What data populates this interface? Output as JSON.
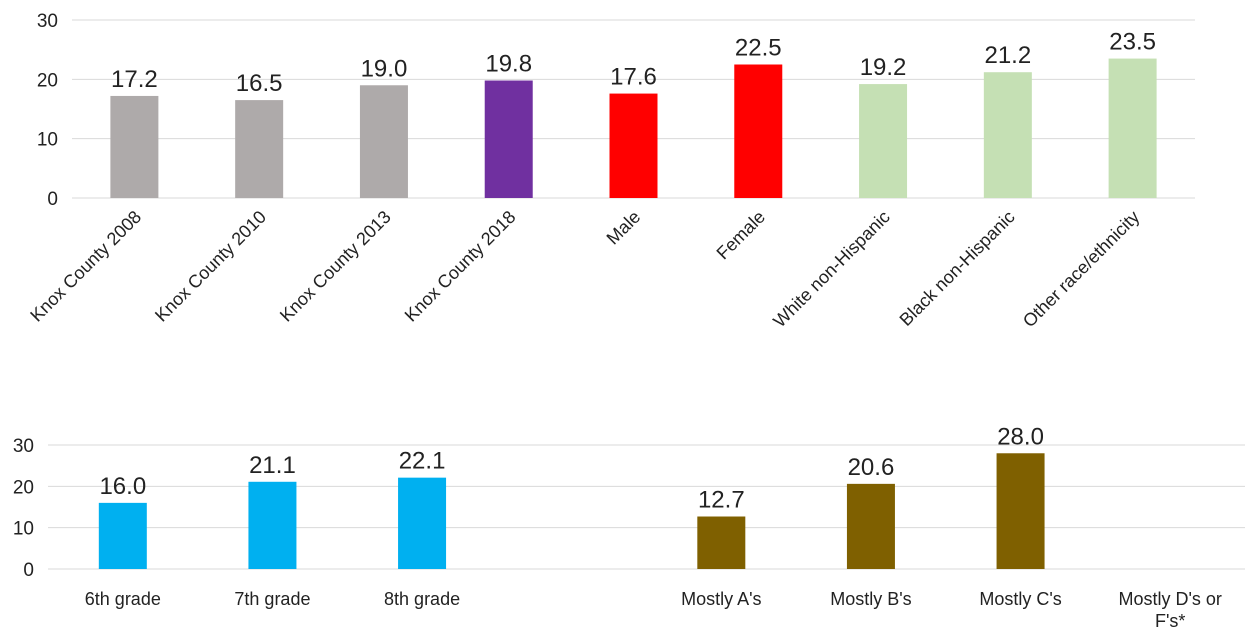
{
  "chart_data": [
    {
      "type": "bar",
      "categories": [
        "Knox County 2008",
        "Knox County 2010",
        "Knox County 2013",
        "Knox County 2018",
        "Male",
        "Female",
        "White non-Hispanic",
        "Black non-Hispanic",
        "Other race/ethnicity"
      ],
      "values": [
        17.2,
        16.5,
        19.0,
        19.8,
        17.6,
        22.5,
        19.2,
        21.2,
        23.5
      ],
      "value_labels": [
        "17.2",
        "16.5",
        "19.0",
        "19.8",
        "17.6",
        "22.5",
        "19.2",
        "21.2",
        "23.5"
      ],
      "colors": [
        "#aeaaaa",
        "#aeaaaa",
        "#aeaaaa",
        "#7030a0",
        "#ff0000",
        "#ff0000",
        "#c5e0b4",
        "#c5e0b4",
        "#c5e0b4"
      ],
      "ylim": [
        0,
        30
      ],
      "yticks": [
        "0",
        "10",
        "20",
        "30"
      ],
      "grid": true,
      "legend": "none",
      "category_label_rotation": "diagonal"
    },
    {
      "type": "bar",
      "categories": [
        "6th grade",
        "7th grade",
        "8th grade",
        "",
        "Mostly A's",
        "Mostly B's",
        "Mostly C's",
        "Mostly D's or F's*"
      ],
      "values": [
        16.0,
        21.1,
        22.1,
        null,
        12.7,
        20.6,
        28.0,
        null
      ],
      "value_labels": [
        "16.0",
        "21.1",
        "22.1",
        "",
        "12.7",
        "20.6",
        "28.0",
        ""
      ],
      "colors": [
        "#00b0f0",
        "#00b0f0",
        "#00b0f0",
        "#ffffff",
        "#7f6000",
        "#7f6000",
        "#7f6000",
        "#7f6000"
      ],
      "ylim": [
        0,
        30
      ],
      "yticks": [
        "0",
        "10",
        "20",
        "30"
      ],
      "grid": true,
      "legend": "none"
    }
  ]
}
